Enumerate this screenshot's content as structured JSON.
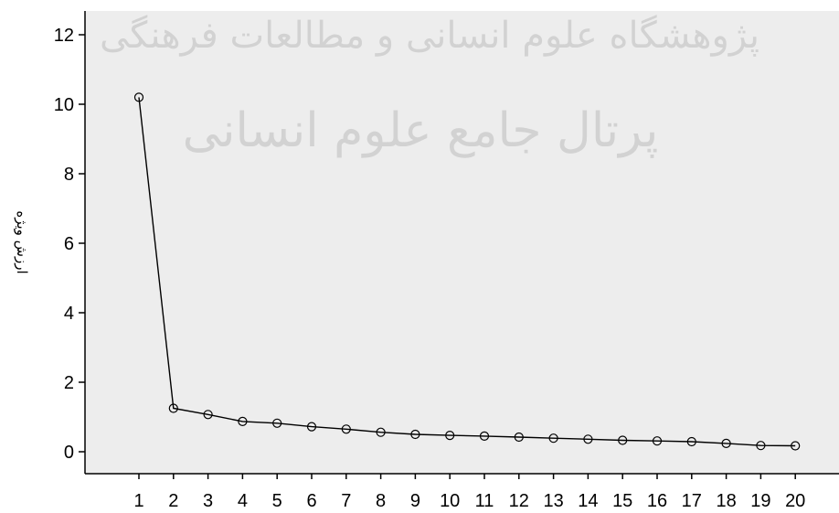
{
  "chart_data": {
    "type": "line",
    "title": "",
    "xlabel": "",
    "ylabel": "ارزش ویژه",
    "x": [
      1,
      2,
      3,
      4,
      5,
      6,
      7,
      8,
      9,
      10,
      11,
      12,
      13,
      14,
      15,
      16,
      17,
      18,
      19,
      20
    ],
    "series": [
      {
        "values": [
          10.2,
          1.25,
          1.07,
          0.87,
          0.82,
          0.72,
          0.65,
          0.56,
          0.5,
          0.47,
          0.45,
          0.42,
          0.39,
          0.36,
          0.33,
          0.31,
          0.29,
          0.24,
          0.18,
          0.17
        ]
      }
    ],
    "ylim": [
      -0.5,
      12.6
    ],
    "yticks": [
      0,
      2,
      4,
      6,
      8,
      10,
      12
    ],
    "grid": false,
    "legend": "none",
    "marker": "open-circle",
    "colors": {
      "plot_background": "#ededed",
      "line": "#000000",
      "axis": "#000000"
    }
  },
  "watermark": {
    "line1": "پژوهشگاه علوم انسانی و مطالعات فرهنگی",
    "line2": "پرتال جامع علوم انسانی"
  }
}
